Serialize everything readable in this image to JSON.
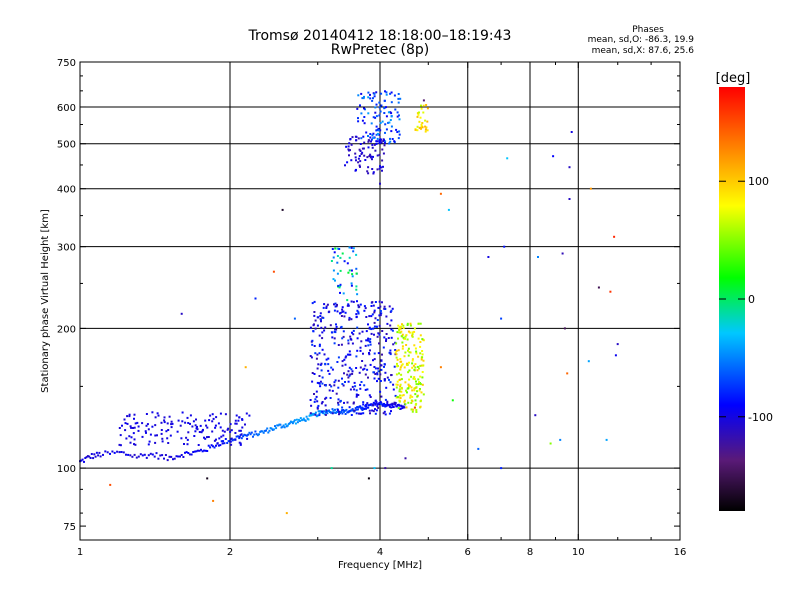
{
  "chart_data": {
    "type": "scatter",
    "title": "Tromsø 20140412 18:18:00–18:19:43",
    "subtitle": "RwPretec (8p)",
    "stats": {
      "heading": "Phases",
      "line1": "mean, sd,O: -86.3, 19.9",
      "line2": "mean, sd,X:  87.6, 25.6"
    },
    "xlabel": "Frequency [MHz]",
    "ylabel": "Stationary phase Virtual Height [km]",
    "x_scale": "log2",
    "y_scale": "log",
    "xlim": [
      1,
      16
    ],
    "ylim": [
      70,
      750
    ],
    "x_ticks": [
      1,
      2,
      4,
      6,
      8,
      10,
      16
    ],
    "x_tick_labels": [
      "1",
      "2",
      "4",
      "6",
      "8",
      "10",
      "16"
    ],
    "x_grid": [
      2,
      4,
      6,
      8,
      10
    ],
    "y_ticks": [
      75,
      100,
      200,
      300,
      400,
      500,
      600,
      750
    ],
    "y_tick_labels": [
      "75",
      "100",
      "200",
      "300",
      "400",
      "500",
      "600",
      "750"
    ],
    "y_grid": [
      100,
      200,
      300,
      400,
      500,
      600
    ],
    "grid": true,
    "colorbar": {
      "unit": "[deg]",
      "min": -180,
      "max": 180,
      "ticks": [
        100,
        0,
        -100
      ],
      "tick_labels": [
        "100",
        "0",
        "-100"
      ],
      "colors": [
        "#000000",
        "#5a1a78",
        "#0000ff",
        "#00c8ff",
        "#00ff00",
        "#ffff00",
        "#ff8000",
        "#ff0000"
      ]
    },
    "o_trace": {
      "phase_mean": -86.3,
      "points": [
        [
          1.0,
          103,
          -100
        ],
        [
          1.05,
          106,
          -105
        ],
        [
          1.1,
          107,
          -100
        ],
        [
          1.2,
          108,
          -95
        ],
        [
          1.3,
          106,
          -102
        ],
        [
          1.4,
          107,
          -100
        ],
        [
          1.5,
          105,
          -108
        ],
        [
          1.6,
          107,
          -100
        ],
        [
          1.7,
          108,
          -95
        ],
        [
          1.8,
          110,
          -90
        ],
        [
          1.9,
          113,
          -85
        ],
        [
          2.0,
          115,
          -80
        ],
        [
          2.1,
          117,
          -70
        ],
        [
          2.2,
          118,
          -65
        ],
        [
          2.3,
          119,
          -60
        ],
        [
          2.4,
          121,
          -55
        ],
        [
          2.5,
          123,
          -50
        ],
        [
          2.6,
          124,
          -48
        ],
        [
          2.7,
          126,
          -45
        ],
        [
          2.8,
          127,
          -45
        ],
        [
          2.9,
          129,
          -40
        ],
        [
          3.0,
          131,
          -45
        ],
        [
          3.1,
          132,
          -50
        ],
        [
          3.2,
          133,
          -55
        ],
        [
          3.3,
          133,
          -60
        ],
        [
          3.4,
          132,
          -65
        ],
        [
          3.5,
          133,
          -70
        ],
        [
          3.6,
          134,
          -75
        ],
        [
          3.7,
          135,
          -80
        ],
        [
          3.8,
          136,
          -85
        ],
        [
          3.9,
          137,
          -90
        ],
        [
          4.0,
          138,
          -95
        ],
        [
          4.1,
          137,
          -90
        ],
        [
          4.2,
          136,
          -95
        ],
        [
          4.3,
          137,
          -100
        ],
        [
          4.4,
          135,
          -95
        ],
        [
          4.5,
          136,
          -100
        ]
      ],
      "spread": [
        {
          "f": [
            1.2,
            2.2
          ],
          "h": [
            112,
            132
          ],
          "phase": [
            -105,
            -95
          ],
          "n": 160
        },
        {
          "f": [
            2.9,
            4.3
          ],
          "h": [
            130,
            230
          ],
          "phase": [
            -120,
            -70
          ],
          "n": 420
        },
        {
          "f": [
            3.2,
            3.6
          ],
          "h": [
            230,
            300
          ],
          "phase": [
            -100,
            10
          ],
          "n": 45
        },
        {
          "f": [
            3.4,
            4.1
          ],
          "h": [
            430,
            520
          ],
          "phase": [
            -120,
            -90
          ],
          "n": 90
        },
        {
          "f": [
            3.6,
            4.4
          ],
          "h": [
            500,
            650
          ],
          "phase": [
            -100,
            -40
          ],
          "n": 110
        }
      ]
    },
    "x_trace": {
      "phase_mean": 87.6,
      "spread": [
        {
          "f": [
            4.3,
            4.9
          ],
          "h": [
            132,
            205
          ],
          "phase": [
            40,
            105
          ],
          "n": 200
        },
        {
          "f": [
            4.7,
            5.0
          ],
          "h": [
            530,
            610
          ],
          "phase": [
            60,
            110
          ],
          "n": 30
        }
      ]
    },
    "noise": [
      [
        1.15,
        92,
        150
      ],
      [
        1.8,
        95,
        -170
      ],
      [
        1.85,
        85,
        130
      ],
      [
        2.15,
        165,
        110
      ],
      [
        2.25,
        232,
        -80
      ],
      [
        2.45,
        265,
        150
      ],
      [
        2.55,
        360,
        -165
      ],
      [
        1.6,
        215,
        -110
      ],
      [
        2.6,
        80,
        110
      ],
      [
        2.7,
        210,
        -60
      ],
      [
        3.2,
        100,
        -10
      ],
      [
        3.8,
        95,
        -175
      ],
      [
        3.9,
        100,
        -30
      ],
      [
        4.0,
        410,
        -110
      ],
      [
        4.1,
        100,
        -120
      ],
      [
        4.5,
        105,
        -120
      ],
      [
        4.7,
        200,
        70
      ],
      [
        4.7,
        135,
        150
      ],
      [
        4.9,
        620,
        -140
      ],
      [
        5.3,
        390,
        140
      ],
      [
        5.5,
        360,
        -30
      ],
      [
        5.3,
        165,
        130
      ],
      [
        5.6,
        140,
        20
      ],
      [
        6.3,
        110,
        -60
      ],
      [
        6.6,
        285,
        -100
      ],
      [
        7.0,
        100,
        -80
      ],
      [
        7.0,
        210,
        -70
      ],
      [
        7.1,
        300,
        -85
      ],
      [
        7.2,
        465,
        -30
      ],
      [
        8.2,
        130,
        -110
      ],
      [
        8.3,
        285,
        -50
      ],
      [
        8.8,
        113,
        50
      ],
      [
        8.9,
        470,
        -90
      ],
      [
        9.2,
        115,
        -50
      ],
      [
        9.3,
        290,
        -115
      ],
      [
        9.4,
        200,
        -150
      ],
      [
        9.5,
        160,
        140
      ],
      [
        9.6,
        380,
        -110
      ],
      [
        9.6,
        445,
        -110
      ],
      [
        9.7,
        530,
        -100
      ],
      [
        10.6,
        400,
        120
      ],
      [
        11.0,
        245,
        -150
      ],
      [
        11.4,
        115,
        -40
      ],
      [
        11.6,
        240,
        160
      ],
      [
        11.8,
        315,
        165
      ],
      [
        11.9,
        175,
        -95
      ],
      [
        12.0,
        185,
        -110
      ],
      [
        10.5,
        170,
        -40
      ]
    ]
  }
}
